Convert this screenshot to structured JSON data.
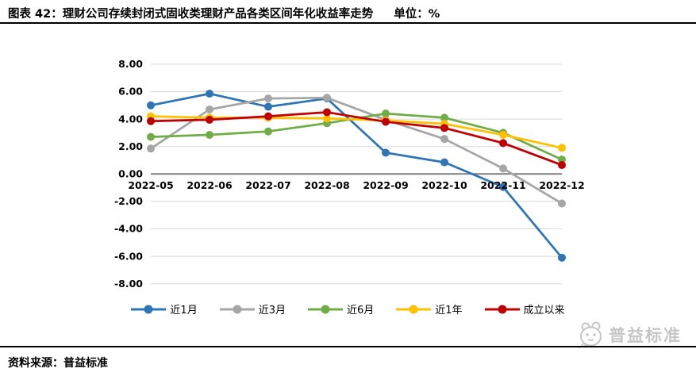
{
  "header": {
    "title": "图表 42：理财公司存续封闭式固收类理财产品各类区间年化收益率走势",
    "unit_label": "单位：%"
  },
  "footer": {
    "source_label": "资料来源：普益标准",
    "watermark_text": "普益标准"
  },
  "colors": {
    "gridline": "#d9d9d9",
    "zero_axis": "#7f7f7f",
    "tick_text": "#000000"
  },
  "chart_data": {
    "type": "line",
    "title": "理财公司存续封闭式固收类理财产品各类区间年化收益率走势",
    "unit": "%",
    "categories": [
      "2022-05",
      "2022-06",
      "2022-07",
      "2022-08",
      "2022-09",
      "2022-10",
      "2022-11",
      "2022-12"
    ],
    "series": [
      {
        "name": "近1月",
        "color": "#2E75B6",
        "values": [
          5.0,
          5.85,
          4.9,
          5.5,
          1.55,
          0.85,
          -0.95,
          -6.1
        ]
      },
      {
        "name": "近3月",
        "color": "#A6A6A6",
        "values": [
          1.85,
          4.7,
          5.5,
          5.55,
          3.95,
          2.55,
          0.4,
          -2.15
        ]
      },
      {
        "name": "近6月",
        "color": "#70AD47",
        "values": [
          2.7,
          2.85,
          3.1,
          3.7,
          4.4,
          4.1,
          3.0,
          1.05
        ]
      },
      {
        "name": "近1年",
        "color": "#FFC000",
        "values": [
          4.2,
          4.1,
          4.1,
          4.05,
          3.9,
          3.65,
          2.85,
          1.9
        ]
      },
      {
        "name": "成立以来",
        "color": "#C00000",
        "values": [
          3.85,
          3.95,
          4.2,
          4.5,
          3.8,
          3.35,
          2.25,
          0.65
        ]
      }
    ],
    "ylim": [
      -8,
      8
    ],
    "ytick_step": 2,
    "ytick_decimals": 2,
    "grid": true,
    "legend_position": "bottom"
  }
}
